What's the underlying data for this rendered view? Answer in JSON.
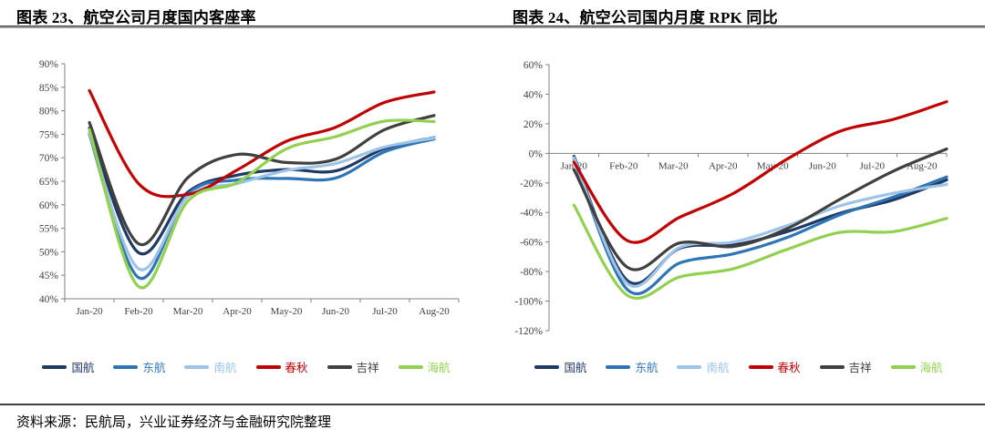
{
  "header": {
    "left_title": "图表 23、航空公司月度国内客座率",
    "right_title": "图表 24、航空公司国内月度 RPK 同比"
  },
  "footer": {
    "source": "资料来源：民航局，兴业证券经济与金融研究院整理"
  },
  "colors": {
    "air_china_navy": "#1f3864",
    "china_eastern_blue": "#2e75b6",
    "china_southern_lightblue": "#9dc3e6",
    "spring_red": "#c00000",
    "juneyao_gray": "#404040",
    "hainan_green": "#92d050",
    "axis_gray": "#808080",
    "tick_label_gray": "#404040"
  },
  "chart_data": [
    {
      "id": "load-factor",
      "type": "line",
      "title": "图表 23、航空公司月度国内客座率",
      "categories": [
        "Jan-20",
        "Feb-20",
        "Mar-20",
        "Apr-20",
        "May-20",
        "Jun-20",
        "Jul-20",
        "Aug-20"
      ],
      "series": [
        {
          "name": "国航",
          "color": "#1f3864",
          "values": [
            76.3,
            49.8,
            62.7,
            66.3,
            67.5,
            67.2,
            72.0,
            74.3
          ]
        },
        {
          "name": "东航",
          "color": "#2e75b6",
          "values": [
            75.0,
            44.5,
            62.2,
            65.3,
            65.6,
            65.7,
            71.3,
            74.0
          ]
        },
        {
          "name": "南航",
          "color": "#9dc3e6",
          "values": [
            75.3,
            46.4,
            61.8,
            64.5,
            67.3,
            68.8,
            72.3,
            74.2
          ]
        },
        {
          "name": "春秋",
          "color": "#c00000",
          "values": [
            84.3,
            64.5,
            62.2,
            67.4,
            73.5,
            76.5,
            81.8,
            84.0
          ]
        },
        {
          "name": "吉祥",
          "color": "#404040",
          "values": [
            77.5,
            51.7,
            65.8,
            70.7,
            69.0,
            69.7,
            76.0,
            79.0
          ]
        },
        {
          "name": "海航",
          "color": "#92d050",
          "values": [
            76.0,
            42.6,
            60.8,
            64.7,
            71.9,
            74.5,
            77.8,
            77.7
          ]
        }
      ],
      "ylabel_format": "percent",
      "ylim": [
        40,
        90
      ],
      "ytick_step": 5,
      "x_axis_position": "bottom",
      "grid": false,
      "legend_position": "bottom",
      "legend": [
        "国航",
        "东航",
        "南航",
        "春秋",
        "吉祥",
        "海航"
      ]
    },
    {
      "id": "rpk-yoy",
      "type": "line",
      "title": "图表 24、航空公司国内月度 RPK 同比",
      "categories": [
        "Jan-20",
        "Feb-20",
        "Mar-20",
        "Apr-20",
        "May-20",
        "Jun-20",
        "Jul-20",
        "Aug-20"
      ],
      "series": [
        {
          "name": "国航",
          "color": "#1f3864",
          "values": [
            -2,
            -86,
            -64,
            -62,
            -53,
            -40.5,
            -31.5,
            -18
          ]
        },
        {
          "name": "东航",
          "color": "#2e75b6",
          "values": [
            -4,
            -92,
            -74,
            -68,
            -57,
            -41.5,
            -29.5,
            -16
          ]
        },
        {
          "name": "南航",
          "color": "#9dc3e6",
          "values": [
            -3,
            -88,
            -63.5,
            -60,
            -49,
            -35.5,
            -27,
            -21
          ]
        },
        {
          "name": "春秋",
          "color": "#c00000",
          "values": [
            -6,
            -59,
            -43,
            -27,
            -4,
            15,
            23,
            35
          ]
        },
        {
          "name": "吉祥",
          "color": "#404040",
          "values": [
            -11,
            -77,
            -60.5,
            -63,
            -51,
            -31,
            -12,
            3
          ]
        },
        {
          "name": "海航",
          "color": "#92d050",
          "values": [
            -35,
            -96,
            -83.5,
            -78,
            -65,
            -53.5,
            -53,
            -44
          ]
        }
      ],
      "ylabel_format": "percent",
      "ylim": [
        -120,
        60
      ],
      "ytick_step": 20,
      "x_axis_position": "zero",
      "grid": false,
      "legend_position": "bottom",
      "legend": [
        "国航",
        "东航",
        "南航",
        "春秋",
        "吉祥",
        "海航"
      ]
    }
  ]
}
